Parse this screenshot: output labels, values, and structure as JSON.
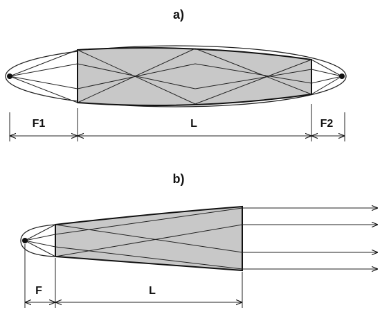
{
  "panel_a": {
    "label": "a)",
    "dims": {
      "f1": "F1",
      "l": "L",
      "f2": "F2"
    }
  },
  "panel_b": {
    "label": "b)",
    "dims": {
      "f": "F",
      "l": "L"
    }
  },
  "colors": {
    "fill": "#c8c8c8",
    "stroke": "#111111",
    "background": "#ffffff"
  }
}
